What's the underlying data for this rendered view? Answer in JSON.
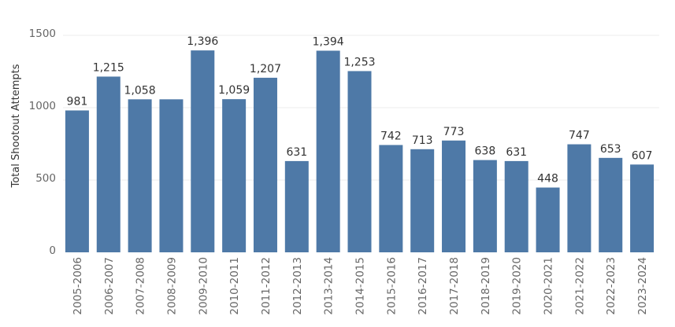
{
  "chart_data": {
    "type": "bar",
    "categories": [
      "2005-2006",
      "2006-2007",
      "2007-2008",
      "2008-2009",
      "2009-2010",
      "2010-2011",
      "2011-2012",
      "2012-2013",
      "2013-2014",
      "2014-2015",
      "2015-2016",
      "2016-2017",
      "2017-2018",
      "2018-2019",
      "2019-2020",
      "2020-2021",
      "2021-2022",
      "2022-2023",
      "2023-2024"
    ],
    "values": [
      981,
      1215,
      1058,
      1058,
      1396,
      1059,
      1207,
      631,
      1394,
      1253,
      742,
      713,
      773,
      638,
      631,
      448,
      747,
      653,
      607
    ],
    "data_labels": [
      "981",
      "1,215",
      "1,058",
      "",
      "1,396",
      "1,059",
      "1,207",
      "631",
      "1,394",
      "1,253",
      "742",
      "713",
      "773",
      "638",
      "631",
      "448",
      "747",
      "653",
      "607"
    ],
    "ylabel": "Total Shootout Attempts",
    "xlabel": "",
    "ylim": [
      0,
      1500
    ],
    "yticks": [
      0,
      500,
      1000,
      1500
    ],
    "ytick_labels": [
      "0",
      "500",
      "1000",
      "1500"
    ],
    "grid": true,
    "bar_color": "#4e79a7"
  }
}
